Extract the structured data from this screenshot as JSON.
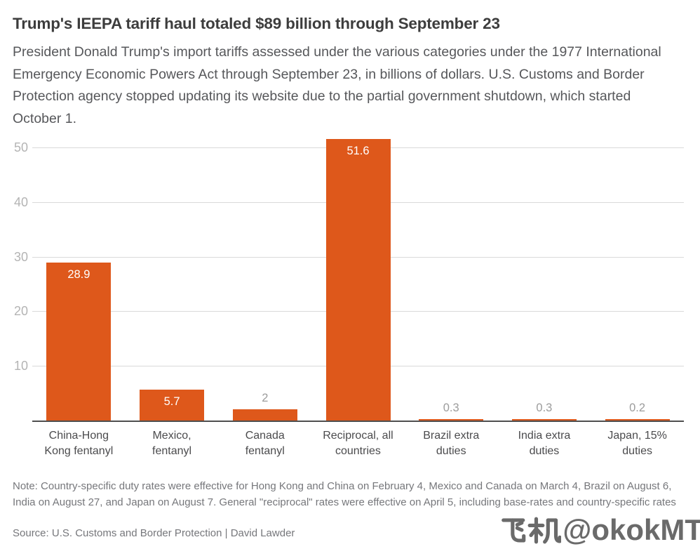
{
  "header": {
    "title": "Trump's IEEPA tariff haul totaled $89 billion through September 23",
    "subtitle": "President Donald Trump's import tariffs assessed under the various categories under the 1977 International Emergency Economic Powers Act through September 23, in billions of dollars. U.S. Customs and Border Protection agency stopped updating its website due to the partial government shutdown, which started October 1."
  },
  "chart_data": {
    "type": "bar",
    "title": "Trump's IEEPA tariff haul totaled $89 billion through September 23",
    "categories": [
      [
        "China-Hong",
        "Kong fentanyl"
      ],
      [
        "Mexico,",
        "fentanyl"
      ],
      [
        "Canada",
        "fentanyl"
      ],
      [
        "Reciprocal, all",
        "countries"
      ],
      [
        "Brazil extra",
        "duties"
      ],
      [
        "India extra",
        "duties"
      ],
      [
        "Japan, 15%",
        "duties"
      ]
    ],
    "values": [
      28.9,
      5.7,
      2,
      51.6,
      0.3,
      0.3,
      0.2
    ],
    "value_labels": [
      "28.9",
      "5.7",
      "2",
      "51.6",
      "0.3",
      "0.3",
      "0.2"
    ],
    "xlabel": "",
    "ylabel": "",
    "ylim": [
      0,
      52.5
    ],
    "yticks": [
      10,
      20,
      30,
      40,
      50
    ],
    "grid": true,
    "legend": false,
    "bar_color": "#de581b",
    "gridline_color": "#d9d9d9",
    "axis_line_color": "#4f4f4f",
    "value_label_inside_color": "#ffffff",
    "value_label_outside_color": "#9c9c9c"
  },
  "footer": {
    "note": "Note: Country-specific duty rates were effective for Hong Kong and China on February 4, Mexico and Canada on March 4, Brazil on August 6, India on August 27, and Japan on August 7. General \"reciprocal\" rates were effective on April 5, including base-rates and country-specific rates",
    "source": "Source: U.S. Customs and Border Protection | David Lawder"
  },
  "watermark": {
    "text": "飞机@okokMT",
    "handle": "@okokMT"
  }
}
